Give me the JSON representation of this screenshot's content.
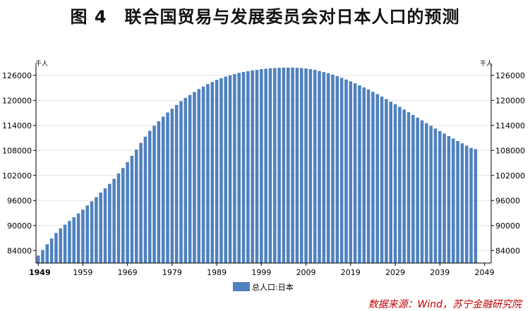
{
  "title": "图 4　联合国贸易与发展委员会对日本人口的预测",
  "source": "数据来源：Wind，苏宁金融研究院",
  "chart_data": {
    "type": "bar",
    "x_start": 1949,
    "x_end": 2050,
    "x_ticks": [
      "1949",
      "1959",
      "1969",
      "1979",
      "1989",
      "1999",
      "2009",
      "2019",
      "2029",
      "2039",
      "2049"
    ],
    "y_ticks": [
      "84000",
      "90000",
      "96000",
      "102000",
      "108000",
      "114000",
      "120000",
      "126000"
    ],
    "ylim": [
      81000,
      128000
    ],
    "y_unit_left": "千人",
    "y_unit_right": "千人",
    "legend": "总人口:日本",
    "legend_position": "bottom-center",
    "bar_color": "#4f81bd",
    "series": [
      {
        "name": "总人口:日本",
        "values": [
          82800,
          84100,
          85500,
          86900,
          88200,
          89300,
          90200,
          91100,
          92000,
          92900,
          93800,
          94800,
          95800,
          96800,
          97900,
          98900,
          100000,
          101200,
          102500,
          103800,
          105200,
          106700,
          108200,
          109800,
          111300,
          112700,
          113900,
          115000,
          116100,
          117100,
          118000,
          118900,
          119800,
          120600,
          121300,
          122000,
          122700,
          123300,
          123900,
          124400,
          124900,
          125300,
          125700,
          126000,
          126300,
          126600,
          126800,
          127000,
          127200,
          127300,
          127500,
          127600,
          127700,
          127750,
          127800,
          127850,
          127850,
          127850,
          127800,
          127750,
          127650,
          127500,
          127300,
          127050,
          126800,
          126500,
          126150,
          125800,
          125400,
          125000,
          124550,
          124100,
          123600,
          123100,
          122600,
          122050,
          121500,
          120900,
          120300,
          119700,
          119100,
          118450,
          117800,
          117150,
          116500,
          115850,
          115200,
          114550,
          113900,
          113250,
          112650,
          112050,
          111450,
          110850,
          110250,
          109700,
          109150,
          108600,
          108300
        ]
      }
    ]
  }
}
